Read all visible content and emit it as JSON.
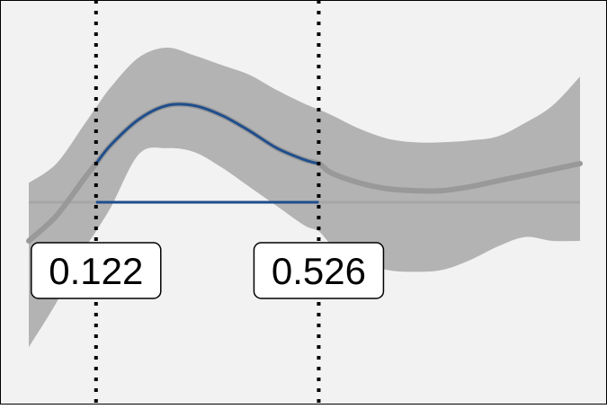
{
  "chart_data": {
    "type": "line",
    "title": "",
    "xlabel": "",
    "ylabel": "",
    "xlim": [
      0,
      1
    ],
    "ylim": [
      -1,
      1
    ],
    "grid": false,
    "legend": "none",
    "series": [
      {
        "x": [
          0.0,
          0.05,
          0.1,
          0.122,
          0.15,
          0.2,
          0.25,
          0.3,
          0.35,
          0.4,
          0.45,
          0.5,
          0.526,
          0.55,
          0.6,
          0.65,
          0.7,
          0.75,
          0.8,
          0.85,
          0.9,
          0.95,
          1.0
        ],
        "y": [
          -0.2,
          -0.07,
          0.12,
          0.2,
          0.3,
          0.43,
          0.5,
          0.5,
          0.45,
          0.37,
          0.28,
          0.22,
          0.2,
          0.15,
          0.1,
          0.07,
          0.06,
          0.06,
          0.08,
          0.11,
          0.14,
          0.17,
          0.2
        ],
        "lower": [
          -0.75,
          -0.52,
          -0.25,
          -0.15,
          -0.02,
          0.25,
          0.28,
          0.26,
          0.18,
          0.08,
          -0.02,
          -0.12,
          -0.15,
          -0.22,
          -0.3,
          -0.35,
          -0.36,
          -0.35,
          -0.3,
          -0.23,
          -0.18,
          -0.2,
          -0.2
        ],
        "upper": [
          0.1,
          0.2,
          0.4,
          0.49,
          0.6,
          0.75,
          0.8,
          0.76,
          0.71,
          0.66,
          0.58,
          0.51,
          0.48,
          0.45,
          0.38,
          0.33,
          0.31,
          0.31,
          0.32,
          0.34,
          0.41,
          0.5,
          0.65
        ]
      }
    ],
    "baseline": 0.0,
    "highlight": {
      "from": 0.122,
      "to": 0.526
    },
    "markers": [
      {
        "x": 0.122,
        "label": "0.122"
      },
      {
        "x": 0.526,
        "label": "0.526"
      }
    ],
    "colors": {
      "panel": "#f2f2f2",
      "band": "#b3b3b3",
      "line": "#999999",
      "highlight": "#1f4e8c",
      "baseline": "#a6a6a6"
    }
  }
}
